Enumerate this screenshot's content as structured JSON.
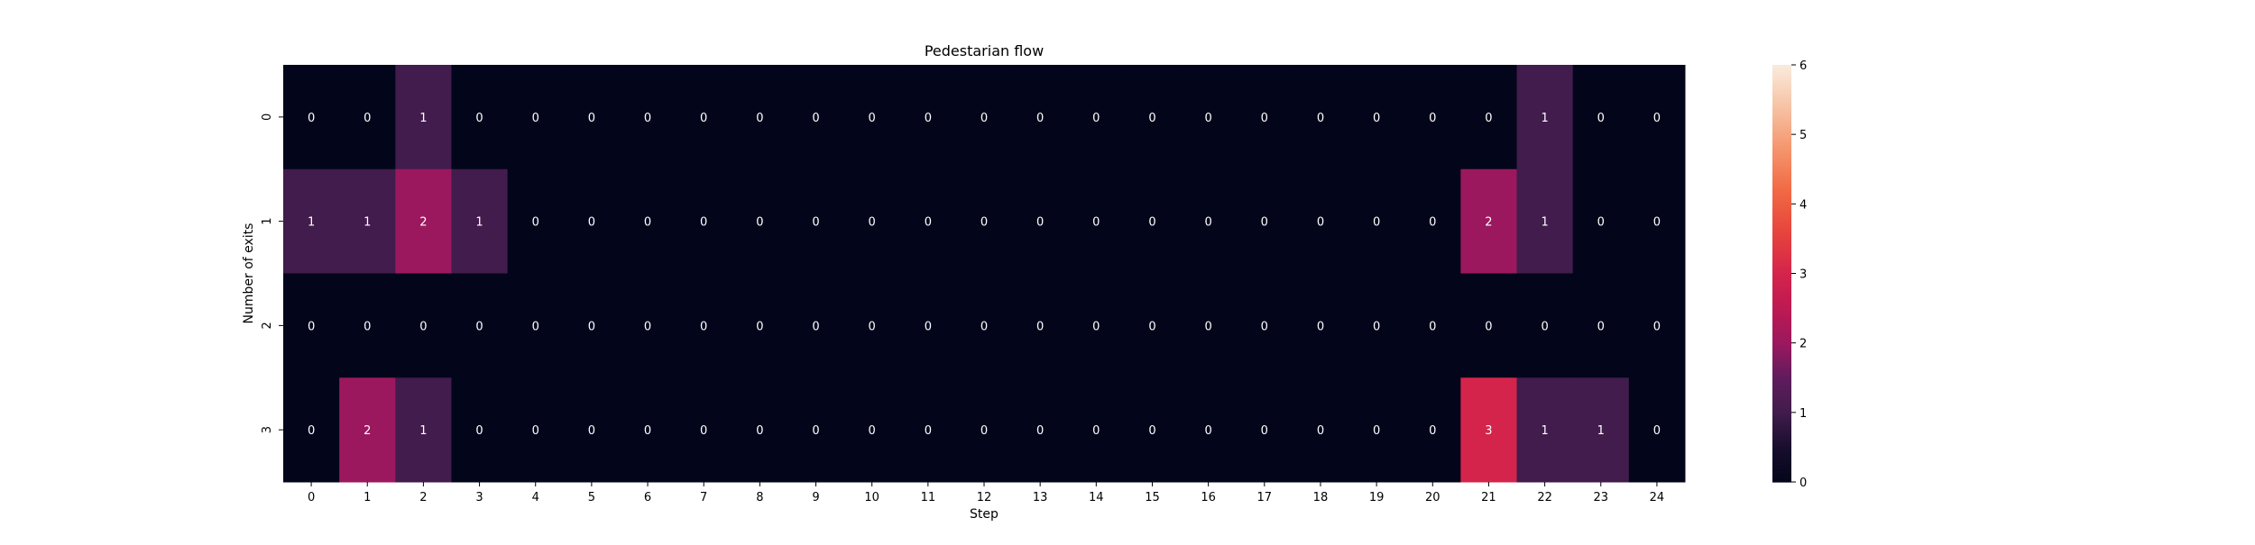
{
  "chart_data": {
    "type": "heatmap",
    "title": "Pedestarian flow",
    "xlabel": "Step",
    "ylabel": "Number of exits",
    "x_categories": [
      "0",
      "1",
      "2",
      "3",
      "4",
      "5",
      "6",
      "7",
      "8",
      "9",
      "10",
      "11",
      "12",
      "13",
      "14",
      "15",
      "16",
      "17",
      "18",
      "19",
      "20",
      "21",
      "22",
      "23",
      "24"
    ],
    "y_categories": [
      "0",
      "1",
      "2",
      "3"
    ],
    "values": [
      [
        0,
        0,
        1,
        0,
        0,
        0,
        0,
        0,
        0,
        0,
        0,
        0,
        0,
        0,
        0,
        0,
        0,
        0,
        0,
        0,
        0,
        0,
        1,
        0,
        0
      ],
      [
        1,
        1,
        2,
        1,
        0,
        0,
        0,
        0,
        0,
        0,
        0,
        0,
        0,
        0,
        0,
        0,
        0,
        0,
        0,
        0,
        0,
        2,
        1,
        0,
        0
      ],
      [
        0,
        0,
        0,
        0,
        0,
        0,
        0,
        0,
        0,
        0,
        0,
        0,
        0,
        0,
        0,
        0,
        0,
        0,
        0,
        0,
        0,
        0,
        0,
        0,
        0
      ],
      [
        0,
        2,
        1,
        0,
        0,
        0,
        0,
        0,
        0,
        0,
        0,
        0,
        0,
        0,
        0,
        0,
        0,
        0,
        0,
        0,
        0,
        3,
        1,
        1,
        0
      ]
    ],
    "colorbar": {
      "range": [
        0,
        6
      ],
      "ticks": [
        "0",
        "1",
        "2",
        "3",
        "4",
        "5",
        "6"
      ],
      "colormap": "rocket"
    },
    "annotations": true,
    "grid": false
  }
}
